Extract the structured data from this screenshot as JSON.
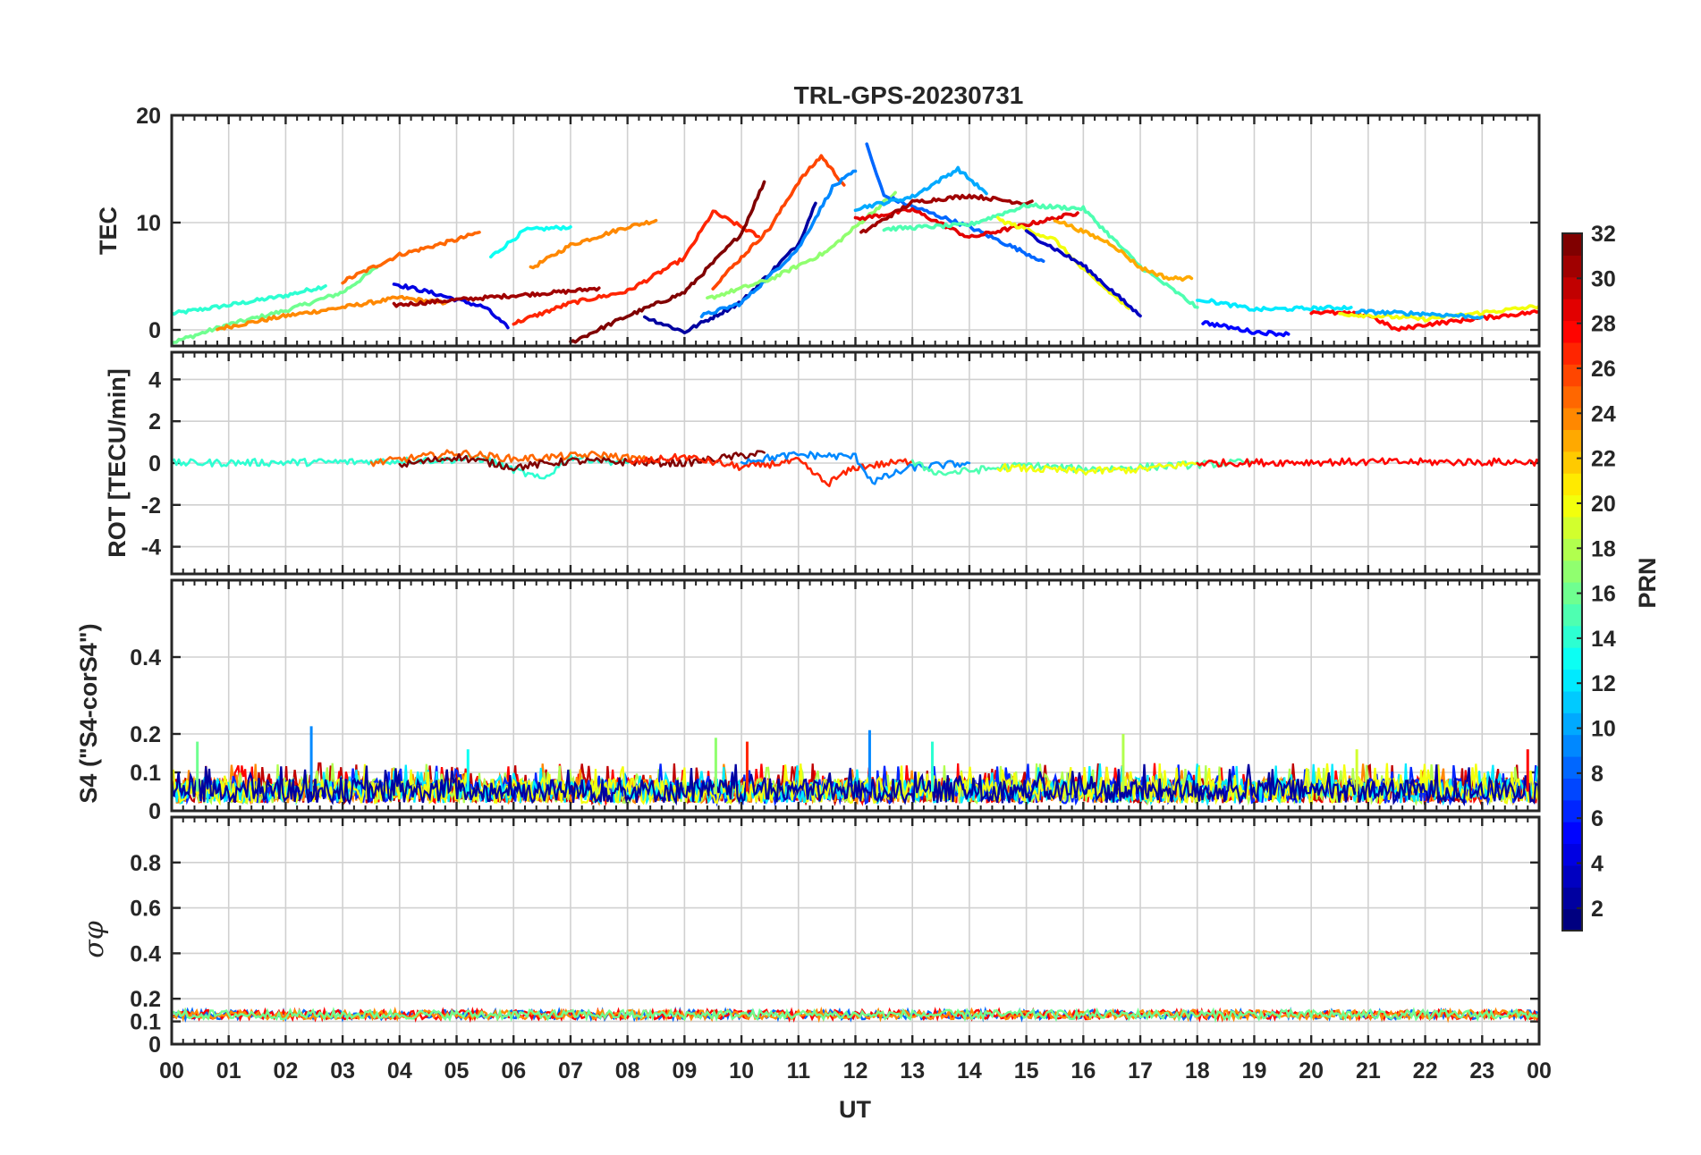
{
  "chart_data": {
    "type": "line",
    "title": "TRL-GPS-20230731",
    "xlabel": "UT",
    "x_range_hours": [
      0,
      24
    ],
    "x_tick_labels": [
      "00",
      "01",
      "02",
      "03",
      "04",
      "05",
      "06",
      "07",
      "08",
      "09",
      "10",
      "11",
      "12",
      "13",
      "14",
      "15",
      "16",
      "17",
      "18",
      "19",
      "20",
      "21",
      "22",
      "23",
      "00"
    ],
    "colorbar": {
      "label": "PRN",
      "range": [
        1,
        32
      ],
      "tick_labels": [
        "2",
        "4",
        "6",
        "8",
        "10",
        "12",
        "14",
        "16",
        "18",
        "20",
        "22",
        "24",
        "26",
        "28",
        "30",
        "32"
      ],
      "colormap": "jet"
    },
    "panels": [
      {
        "name": "tec",
        "ylabel": "TEC",
        "ylim": [
          -1.5,
          20
        ],
        "yticks": [
          0,
          10,
          20
        ],
        "ytick_labels": [
          "0",
          "10",
          "20"
        ],
        "series": [
          {
            "prn": 14,
            "points": [
              [
                0,
                1.5
              ],
              [
                1,
                2.3
              ],
              [
                2,
                3.2
              ],
              [
                2.7,
                4.1
              ]
            ]
          },
          {
            "prn": 16,
            "points": [
              [
                0,
                -1.2
              ],
              [
                1,
                0.5
              ],
              [
                2,
                1.8
              ],
              [
                3,
                3.5
              ],
              [
                3.6,
                5.8
              ]
            ]
          },
          {
            "prn": 24,
            "points": [
              [
                0.8,
                0.1
              ],
              [
                2,
                1.3
              ],
              [
                3,
                2.1
              ],
              [
                4,
                3.0
              ],
              [
                4.8,
                2.5
              ]
            ]
          },
          {
            "prn": 25,
            "points": [
              [
                3,
                4.5
              ],
              [
                4,
                7.0
              ],
              [
                5,
                8.4
              ],
              [
                5.4,
                9.1
              ]
            ]
          },
          {
            "prn": 13,
            "points": [
              [
                5.6,
                6.8
              ],
              [
                6.2,
                9.3
              ],
              [
                7,
                9.6
              ]
            ]
          },
          {
            "prn": 24,
            "points": [
              [
                6.3,
                5.7
              ],
              [
                7,
                7.9
              ],
              [
                8,
                9.6
              ],
              [
                8.5,
                10.2
              ]
            ]
          },
          {
            "prn": 4,
            "points": [
              [
                3.9,
                4.3
              ],
              [
                4.6,
                3.4
              ],
              [
                5.5,
                2.1
              ],
              [
                5.9,
                0.2
              ]
            ]
          },
          {
            "prn": 31,
            "points": [
              [
                3.9,
                2.3
              ],
              [
                5,
                2.8
              ],
              [
                6,
                3.2
              ],
              [
                7,
                3.6
              ],
              [
                7.5,
                3.9
              ]
            ]
          },
          {
            "prn": 27,
            "points": [
              [
                6,
                0.6
              ],
              [
                7,
                2.5
              ],
              [
                8,
                3.6
              ],
              [
                9,
                6.7
              ],
              [
                9.5,
                11.0
              ],
              [
                10,
                9.6
              ],
              [
                10.3,
                8.7
              ]
            ]
          },
          {
            "prn": 32,
            "points": [
              [
                7,
                -1.2
              ],
              [
                8,
                1.3
              ],
              [
                9,
                3.5
              ],
              [
                10,
                9.0
              ],
              [
                10.4,
                13.8
              ]
            ]
          },
          {
            "prn": 2,
            "points": [
              [
                8.3,
                1.2
              ],
              [
                9,
                -0.2
              ],
              [
                10,
                2.6
              ],
              [
                11,
                8.0
              ],
              [
                11.3,
                11.8
              ]
            ]
          },
          {
            "prn": 26,
            "points": [
              [
                9.5,
                4.0
              ],
              [
                10.5,
                9.5
              ],
              [
                11,
                13.8
              ],
              [
                11.4,
                16.2
              ],
              [
                11.8,
                13.5
              ]
            ]
          },
          {
            "prn": 9,
            "points": [
              [
                9.3,
                1.3
              ],
              [
                10,
                2.5
              ],
              [
                11,
                7.6
              ],
              [
                11.6,
                13.3
              ],
              [
                12,
                14.8
              ]
            ]
          },
          {
            "prn": 17,
            "points": [
              [
                9.4,
                2.9
              ],
              [
                10.5,
                4.7
              ],
              [
                11.5,
                7.3
              ],
              [
                12.7,
                12.8
              ]
            ]
          },
          {
            "prn": 8,
            "points": [
              [
                12.2,
                17.2
              ],
              [
                12.5,
                12.5
              ],
              [
                13,
                11.5
              ],
              [
                14,
                9.6
              ],
              [
                15.3,
                6.4
              ]
            ]
          },
          {
            "prn": 29,
            "points": [
              [
                12,
                10.3
              ],
              [
                13,
                11.2
              ],
              [
                14,
                8.6
              ],
              [
                15,
                9.8
              ],
              [
                15.9,
                10.9
              ]
            ]
          },
          {
            "prn": 10,
            "points": [
              [
                12,
                11.3
              ],
              [
                13,
                12.4
              ],
              [
                13.8,
                15.0
              ],
              [
                14.3,
                12.7
              ]
            ]
          },
          {
            "prn": 31,
            "points": [
              [
                12.1,
                9.0
              ],
              [
                13,
                11.9
              ],
              [
                14,
                12.5
              ],
              [
                15,
                11.8
              ],
              [
                15.1,
                12.0
              ]
            ]
          },
          {
            "prn": 15,
            "points": [
              [
                12.5,
                9.4
              ],
              [
                14,
                9.8
              ],
              [
                15,
                11.6
              ],
              [
                16,
                11.3
              ],
              [
                17,
                5.9
              ],
              [
                18,
                2.1
              ]
            ]
          },
          {
            "prn": 20,
            "points": [
              [
                14.5,
                10.3
              ],
              [
                15.5,
                8.4
              ],
              [
                16,
                5.6
              ],
              [
                16.8,
                2.0
              ]
            ]
          },
          {
            "prn": 3,
            "points": [
              [
                15,
                9.1
              ],
              [
                16,
                6.0
              ],
              [
                17,
                1.3
              ]
            ]
          },
          {
            "prn": 23,
            "points": [
              [
                15.5,
                10.3
              ],
              [
                16.5,
                8.0
              ],
              [
                17,
                5.8
              ],
              [
                17.5,
                4.8
              ],
              [
                17.9,
                4.8
              ]
            ]
          },
          {
            "prn": 12,
            "points": [
              [
                18,
                2.9
              ],
              [
                19,
                1.9
              ],
              [
                20,
                2.0
              ],
              [
                20.7,
                2.1
              ]
            ]
          },
          {
            "prn": 5,
            "points": [
              [
                18.1,
                0.7
              ],
              [
                19,
                -0.2
              ],
              [
                19.6,
                -0.4
              ]
            ]
          },
          {
            "prn": 28,
            "points": [
              [
                20,
                1.7
              ],
              [
                21,
                1.4
              ],
              [
                21.5,
                0.0
              ],
              [
                22,
                0.5
              ],
              [
                23,
                1.1
              ],
              [
                24,
                1.7
              ]
            ]
          },
          {
            "prn": 20,
            "points": [
              [
                20.5,
                1.5
              ],
              [
                21.5,
                1.2
              ],
              [
                22,
                1.0
              ],
              [
                23,
                1.6
              ],
              [
                24,
                2.2
              ]
            ]
          },
          {
            "prn": 10,
            "points": [
              [
                20.8,
                1.7
              ],
              [
                22,
                1.5
              ],
              [
                23,
                1.2
              ]
            ]
          }
        ]
      },
      {
        "name": "rot",
        "ylabel": "ROT [TECU/min]",
        "ylim": [
          -5.3,
          5.3
        ],
        "yticks": [
          -4,
          -2,
          0,
          2,
          4
        ],
        "ytick_labels": [
          "-4",
          "-2",
          "0",
          "2",
          "4"
        ],
        "series": [
          {
            "prn": 14,
            "points": [
              [
                0,
                0
              ],
              [
                3,
                0.05
              ],
              [
                5.5,
                0.2
              ],
              [
                6.5,
                -0.8
              ],
              [
                7,
                0.3
              ],
              [
                8,
                0
              ]
            ]
          },
          {
            "prn": 25,
            "points": [
              [
                3.5,
                0
              ],
              [
                5,
                0.5
              ],
              [
                6,
                0.2
              ],
              [
                7.5,
                0.4
              ],
              [
                8.5,
                0.1
              ]
            ]
          },
          {
            "prn": 32,
            "points": [
              [
                4,
                -0.1
              ],
              [
                5,
                0.3
              ],
              [
                6,
                -0.2
              ],
              [
                7,
                0.1
              ],
              [
                9,
                0
              ],
              [
                10.4,
                0.5
              ]
            ]
          },
          {
            "prn": 27,
            "points": [
              [
                8,
                0
              ],
              [
                9,
                0.3
              ],
              [
                10,
                -0.2
              ],
              [
                11,
                0.1
              ],
              [
                11.5,
                -1.0
              ],
              [
                12,
                -0.2
              ],
              [
                13,
                0.1
              ]
            ]
          },
          {
            "prn": 9,
            "points": [
              [
                10,
                0.1
              ],
              [
                11,
                0.4
              ],
              [
                12,
                0.3
              ],
              [
                12.3,
                -0.9
              ],
              [
                13,
                -0.2
              ],
              [
                14,
                0
              ]
            ]
          },
          {
            "prn": 15,
            "points": [
              [
                13,
                0
              ],
              [
                13.5,
                -0.5
              ],
              [
                15,
                -0.1
              ],
              [
                16,
                -0.3
              ],
              [
                17,
                -0.2
              ],
              [
                19,
                0.05
              ]
            ]
          },
          {
            "prn": 20,
            "points": [
              [
                14.5,
                -0.2
              ],
              [
                16,
                -0.4
              ],
              [
                17,
                -0.3
              ],
              [
                18,
                0
              ]
            ]
          },
          {
            "prn": 28,
            "points": [
              [
                18,
                0
              ],
              [
                20,
                0.05
              ],
              [
                24,
                0.05
              ]
            ]
          }
        ]
      },
      {
        "name": "s4",
        "ylabel": "S4 (\"S4-corS4\")",
        "ylim": [
          0,
          0.6
        ],
        "yticks": [
          0,
          0.1,
          0.2,
          0.4
        ],
        "ytick_labels": [
          "0",
          "0.1",
          "0.2",
          "0.4"
        ],
        "typical_range": [
          0.02,
          0.1
        ],
        "peaks": [
          {
            "ut": 0.45,
            "value": 0.18,
            "prn": 16
          },
          {
            "ut": 2.45,
            "value": 0.22,
            "prn": 9
          },
          {
            "ut": 5.2,
            "value": 0.16,
            "prn": 13
          },
          {
            "ut": 9.55,
            "value": 0.19,
            "prn": 17
          },
          {
            "ut": 10.1,
            "value": 0.18,
            "prn": 27
          },
          {
            "ut": 12.25,
            "value": 0.21,
            "prn": 9
          },
          {
            "ut": 13.35,
            "value": 0.18,
            "prn": 14
          },
          {
            "ut": 16.7,
            "value": 0.2,
            "prn": 18
          },
          {
            "ut": 20.8,
            "value": 0.16,
            "prn": 19
          },
          {
            "ut": 23.8,
            "value": 0.16,
            "prn": 28
          }
        ]
      },
      {
        "name": "sigma_phi",
        "ylabel": "σφ",
        "ylim": [
          0,
          1
        ],
        "yticks": [
          0,
          0.1,
          0.2,
          0.4,
          0.6,
          0.8
        ],
        "ytick_labels": [
          "0",
          "0.1",
          "0.2",
          "0.4",
          "0.6",
          "0.8"
        ],
        "typical_range": [
          0.11,
          0.15
        ]
      }
    ]
  }
}
